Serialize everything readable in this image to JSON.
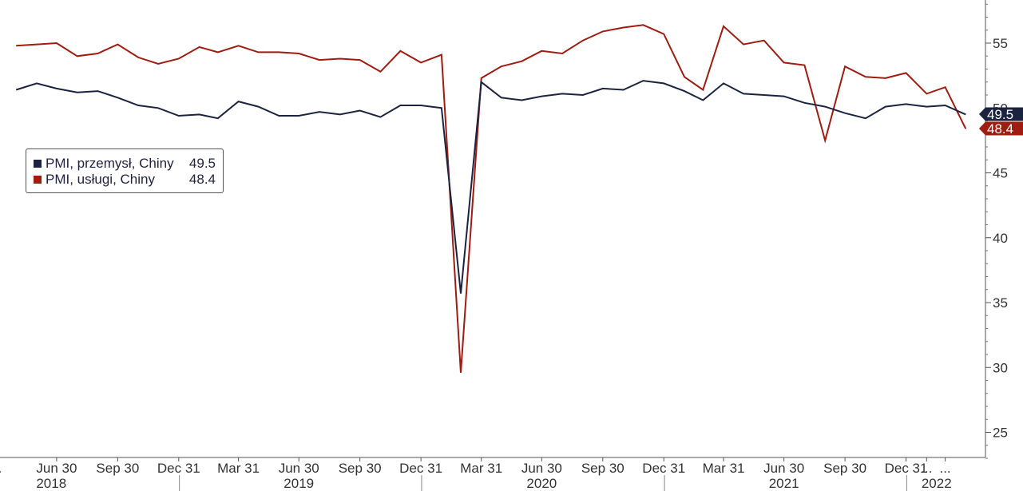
{
  "chart_data": {
    "type": "line",
    "x_dates": [
      "2018-04-30",
      "2018-05-31",
      "2018-06-30",
      "2018-07-31",
      "2018-08-31",
      "2018-09-30",
      "2018-10-31",
      "2018-11-30",
      "2018-12-31",
      "2019-01-31",
      "2019-02-28",
      "2019-03-31",
      "2019-04-30",
      "2019-05-31",
      "2019-06-30",
      "2019-07-31",
      "2019-08-31",
      "2019-09-30",
      "2019-10-31",
      "2019-11-30",
      "2019-12-31",
      "2020-01-31",
      "2020-02-29",
      "2020-03-31",
      "2020-04-30",
      "2020-05-31",
      "2020-06-30",
      "2020-07-31",
      "2020-08-31",
      "2020-09-30",
      "2020-10-31",
      "2020-11-30",
      "2020-12-31",
      "2021-01-31",
      "2021-02-28",
      "2021-03-31",
      "2021-04-30",
      "2021-05-31",
      "2021-06-30",
      "2021-07-31",
      "2021-08-31",
      "2021-09-30",
      "2021-10-31",
      "2021-11-30",
      "2021-12-31",
      "2022-01-31",
      "2022-02-28",
      "2022-03-31"
    ],
    "series": [
      {
        "name": "PMI, przemysł, Chiny",
        "color": "#1b2340",
        "last_value": "49.5",
        "values": [
          51.4,
          51.9,
          51.5,
          51.2,
          51.3,
          50.8,
          50.2,
          50.0,
          49.4,
          49.5,
          49.2,
          50.5,
          50.1,
          49.4,
          49.4,
          49.7,
          49.5,
          49.8,
          49.3,
          50.2,
          50.2,
          50.0,
          35.7,
          52.0,
          50.8,
          50.6,
          50.9,
          51.1,
          51.0,
          51.5,
          51.4,
          52.1,
          51.9,
          51.3,
          50.6,
          51.9,
          51.1,
          51.0,
          50.9,
          50.4,
          50.1,
          49.6,
          49.2,
          50.1,
          50.3,
          50.1,
          50.2,
          49.5
        ]
      },
      {
        "name": "PMI, usługi, Chiny",
        "color": "#a01b10",
        "last_value": "48.4",
        "values": [
          54.8,
          54.9,
          55.0,
          54.0,
          54.2,
          54.9,
          53.9,
          53.4,
          53.8,
          54.7,
          54.3,
          54.8,
          54.3,
          54.3,
          54.2,
          53.7,
          53.8,
          53.7,
          52.8,
          54.4,
          53.5,
          54.1,
          29.6,
          52.3,
          53.2,
          53.6,
          54.4,
          54.2,
          55.2,
          55.9,
          56.2,
          56.4,
          55.7,
          52.4,
          51.4,
          56.3,
          54.9,
          55.2,
          53.5,
          53.3,
          47.5,
          53.2,
          52.4,
          52.3,
          52.7,
          51.1,
          51.6,
          48.4
        ]
      }
    ],
    "y_ticks": [
      "25",
      "30",
      "35",
      "40",
      "45",
      "50",
      "55"
    ],
    "ylim": [
      22.5,
      58.8
    ],
    "x_tick_labels": [
      "...",
      "Jun 30",
      "Sep 30",
      "Dec 31",
      "Mar 31",
      "Jun 30",
      "Sep 30",
      "Dec 31",
      "Mar 31",
      "Jun 30",
      "Sep 30",
      "Dec 31",
      "Mar 31",
      "Jun 30",
      "Sep 30",
      "Dec 31",
      "...",
      "..."
    ],
    "x_tick_dates": [
      "2018-03-31",
      "2018-06-30",
      "2018-09-30",
      "2018-12-31",
      "2019-03-31",
      "2019-06-30",
      "2019-09-30",
      "2019-12-31",
      "2020-03-31",
      "2020-06-30",
      "2020-09-30",
      "2020-12-31",
      "2021-03-31",
      "2021-06-30",
      "2021-09-30",
      "2021-12-31",
      "2022-01-31",
      "2022-02-28"
    ],
    "year_labels": [
      "2018",
      "2019",
      "2020",
      "2021",
      "2022"
    ],
    "year_label_dates": [
      "2018-06-22",
      "2019-06-30",
      "2020-06-30",
      "2021-06-30",
      "2022-02-15"
    ],
    "year_boundaries": [
      "2019-01-01",
      "2020-01-01",
      "2021-01-01",
      "2022-01-01"
    ],
    "grid": false,
    "legend_position": "left"
  }
}
